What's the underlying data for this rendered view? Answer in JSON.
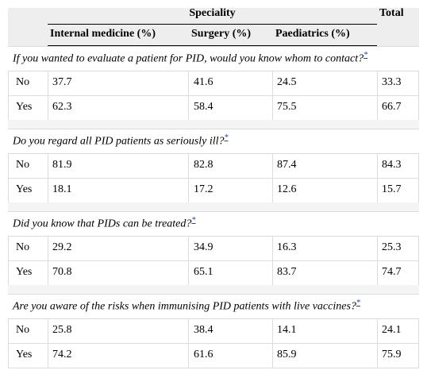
{
  "header": {
    "group": "Speciality",
    "total": "Total",
    "columns": [
      "Internal medicine (%)",
      "Surgery (%)",
      "Paediatrics (%)"
    ]
  },
  "sections": [
    {
      "question": "If you wanted to evaluate a patient for PID, would you know whom to contact?",
      "note": "*",
      "rows": [
        {
          "label": "No",
          "values": [
            37.7,
            41.6,
            24.5,
            33.3
          ]
        },
        {
          "label": "Yes",
          "values": [
            62.3,
            58.4,
            75.5,
            66.7
          ]
        }
      ]
    },
    {
      "question": "Do you regard all PID patients as seriously ill?",
      "note": "*",
      "rows": [
        {
          "label": "No",
          "values": [
            81.9,
            82.8,
            87.4,
            84.3
          ]
        },
        {
          "label": "Yes",
          "values": [
            18.1,
            17.2,
            12.6,
            15.7
          ]
        }
      ]
    },
    {
      "question": "Did you know that PIDs can be treated?",
      "note": "*",
      "rows": [
        {
          "label": "No",
          "values": [
            29.2,
            34.9,
            16.3,
            25.3
          ]
        },
        {
          "label": "Yes",
          "values": [
            70.8,
            65.1,
            83.7,
            74.7
          ]
        }
      ]
    },
    {
      "question": "Are you aware of the risks when immunising PID patients with live vaccines?",
      "note": "*",
      "rows": [
        {
          "label": "No",
          "values": [
            25.8,
            38.4,
            14.1,
            24.1
          ]
        },
        {
          "label": "Yes",
          "values": [
            74.2,
            61.6,
            85.9,
            75.9
          ]
        }
      ]
    }
  ]
}
